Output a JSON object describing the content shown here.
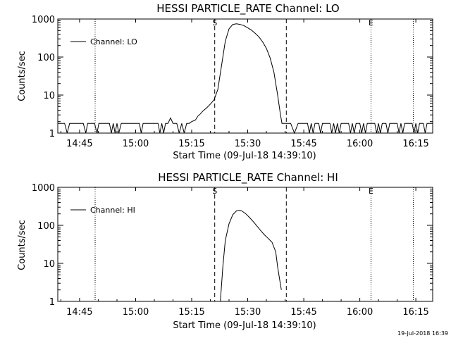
{
  "timestamp": "19-Jul-2018 16:39",
  "chart_data": [
    {
      "type": "line",
      "title": "HESSI PARTICLE_RATE Channel: LO",
      "xlabel": "Start Time (09-Jul-18 14:39:10)",
      "ylabel": "Counts/sec",
      "yscale": "log",
      "ylim": [
        1,
        1000
      ],
      "xlim": [
        "14:39:10",
        "16:19:30"
      ],
      "x_ticks": [
        "14:45",
        "15:00",
        "15:15",
        "15:30",
        "15:45",
        "16:00",
        "16:15"
      ],
      "y_ticks": [
        "1",
        "10",
        "100",
        "1000"
      ],
      "legend": {
        "label": "Channel: LO",
        "placement": "top-left"
      },
      "markers": [
        {
          "label": "S",
          "time": "15:21:10",
          "style": "dashed"
        },
        {
          "label": "",
          "time": "15:40:20",
          "style": "dashed"
        },
        {
          "label": "",
          "time": "14:49:10",
          "style": "dotted"
        },
        {
          "label": "E",
          "time": "16:03:00",
          "style": "dotted"
        },
        {
          "label": "",
          "time": "16:14:20",
          "style": "dotted"
        }
      ],
      "series": [
        {
          "name": "Channel: LO",
          "x": [
            "14:39:10",
            "14:41:00",
            "14:41:40",
            "14:42:20",
            "14:43:00",
            "14:46:00",
            "14:46:40",
            "14:47:10",
            "14:47:40",
            "14:49:00",
            "14:49:40",
            "14:50:10",
            "14:53:00",
            "14:53:30",
            "14:54:00",
            "14:54:30",
            "14:55:00",
            "14:55:30",
            "14:56:10",
            "15:01:00",
            "15:01:30",
            "15:02:00",
            "15:02:30",
            "15:06:00",
            "15:06:30",
            "15:07:00",
            "15:07:30",
            "15:08:00",
            "15:08:40",
            "15:09:20",
            "15:10:00",
            "15:11:00",
            "15:11:40",
            "15:12:20",
            "15:13:00",
            "15:13:40",
            "15:14:20",
            "15:15:00",
            "15:16:00",
            "15:16:40",
            "15:17:20",
            "15:18:00",
            "15:19:00",
            "15:20:00",
            "15:21:00",
            "15:22:00",
            "15:23:00",
            "15:24:00",
            "15:25:00",
            "15:26:00",
            "15:27:00",
            "15:28:00",
            "15:29:00",
            "15:30:00",
            "15:31:00",
            "15:32:00",
            "15:33:00",
            "15:34:00",
            "15:35:00",
            "15:36:00",
            "15:37:00",
            "15:38:00",
            "15:38:40",
            "15:39:10",
            "15:39:40",
            "15:40:20",
            "15:41:30",
            "15:42:30",
            "15:43:30",
            "15:46:00",
            "15:46:30",
            "15:47:00",
            "15:47:30",
            "15:48:00",
            "15:49:00",
            "15:49:30",
            "15:50:00",
            "15:52:00",
            "15:52:30",
            "15:53:00",
            "15:53:30",
            "15:54:00",
            "15:54:30",
            "15:55:00",
            "15:57:00",
            "15:57:30",
            "15:58:00",
            "15:58:30",
            "15:59:00",
            "16:00:00",
            "16:00:30",
            "16:01:00",
            "16:01:30",
            "16:02:00",
            "16:04:00",
            "16:04:30",
            "16:05:00",
            "16:05:30",
            "16:06:00",
            "16:07:00",
            "16:07:30",
            "16:08:00",
            "16:10:00",
            "16:10:30",
            "16:11:00",
            "16:11:30",
            "16:12:00",
            "16:14:00",
            "16:14:30",
            "16:15:00",
            "16:15:30",
            "16:16:00",
            "16:17:00",
            "16:17:30",
            "16:18:00",
            "16:19:30"
          ],
          "y": [
            1.8,
            1.8,
            1,
            1.8,
            1.8,
            1.8,
            1,
            1.8,
            1.8,
            1.8,
            1,
            1.8,
            1.8,
            1,
            1.8,
            1,
            1.8,
            1,
            1.8,
            1.8,
            1,
            1.8,
            1.8,
            1.8,
            1,
            1.8,
            1,
            1.8,
            1.8,
            2.5,
            1.8,
            1.8,
            1,
            1.8,
            1,
            1.8,
            1.8,
            2.0,
            2.2,
            2.8,
            3.2,
            3.8,
            4.6,
            5.8,
            7.5,
            14,
            60,
            260,
            550,
            720,
            750,
            720,
            670,
            590,
            510,
            420,
            340,
            250,
            170,
            95,
            40,
            10,
            3.5,
            1.8,
            1.8,
            1.8,
            1.8,
            1,
            1.8,
            1.8,
            1,
            1.8,
            1,
            1.8,
            1.8,
            1,
            1.8,
            1.8,
            1,
            1.8,
            1,
            1.8,
            1,
            1.8,
            1.8,
            1,
            1.8,
            1,
            1.8,
            1.8,
            1,
            1.8,
            1,
            1.8,
            1.8,
            1,
            1.8,
            1,
            1.8,
            1.8,
            1,
            1.8,
            1.8,
            1,
            1.8,
            1,
            1.8,
            1.8,
            1,
            1.8,
            1,
            1.8,
            1.8,
            1,
            1.8,
            1.8
          ]
        }
      ]
    },
    {
      "type": "line",
      "title": "HESSI PARTICLE_RATE Channel: HI",
      "xlabel": "Start Time (09-Jul-18 14:39:10)",
      "ylabel": "Counts/sec",
      "yscale": "log",
      "ylim": [
        1,
        1000
      ],
      "xlim": [
        "14:39:10",
        "16:19:30"
      ],
      "x_ticks": [
        "14:45",
        "15:00",
        "15:15",
        "15:30",
        "15:45",
        "16:00",
        "16:15"
      ],
      "y_ticks": [
        "1",
        "10",
        "100",
        "1000"
      ],
      "legend": {
        "label": "Channel: HI",
        "placement": "top-left"
      },
      "markers": [
        {
          "label": "S",
          "time": "15:21:10",
          "style": "dashed"
        },
        {
          "label": "",
          "time": "15:40:20",
          "style": "dashed"
        },
        {
          "label": "",
          "time": "14:49:10",
          "style": "dotted"
        },
        {
          "label": "E",
          "time": "16:03:00",
          "style": "dotted"
        },
        {
          "label": "",
          "time": "16:14:20",
          "style": "dotted"
        }
      ],
      "series": [
        {
          "name": "Channel: HI",
          "x": [
            "15:22:40",
            "15:23:20",
            "15:24:00",
            "15:25:00",
            "15:26:00",
            "15:27:00",
            "15:28:00",
            "15:28:40",
            "15:29:30",
            "15:30:30",
            "15:31:30",
            "15:32:30",
            "15:33:30",
            "15:34:30",
            "15:35:30",
            "15:36:30",
            "15:37:30",
            "15:38:00",
            "15:38:30",
            "15:39:00"
          ],
          "y": [
            1,
            8,
            40,
            110,
            190,
            240,
            250,
            230,
            200,
            160,
            125,
            95,
            72,
            56,
            45,
            36,
            20,
            8,
            4,
            2
          ]
        }
      ]
    }
  ]
}
